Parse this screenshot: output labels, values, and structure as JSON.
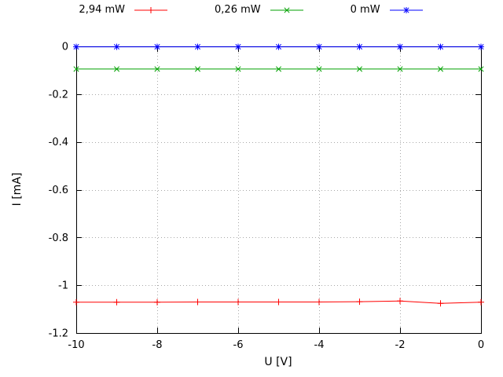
{
  "chart_data": {
    "type": "line",
    "title": "",
    "xlabel": "U [V]",
    "ylabel": "I [mA]",
    "xlim": [
      -10,
      0
    ],
    "ylim": [
      -1.2,
      0
    ],
    "xticks": [
      -10,
      -8,
      -6,
      -4,
      -2,
      0
    ],
    "xtick_labels": [
      "-10",
      "-8",
      "-6",
      "-4",
      "-2",
      "0"
    ],
    "yticks": [
      0,
      -0.2,
      -0.4,
      -0.6,
      -0.8,
      -1,
      -1.2
    ],
    "ytick_labels": [
      "0",
      "-0.2",
      "-0.4",
      "-0.6",
      "-0.8",
      "-1",
      "-1.2"
    ],
    "grid": true,
    "legend_position": "top",
    "x": [
      -10,
      -9,
      -8,
      -7,
      -6,
      -5,
      -4,
      -3,
      -2,
      -1,
      0
    ],
    "series": [
      {
        "name": "2,94 mW",
        "color": "#ff0000",
        "marker": "plus",
        "values": [
          -1.071,
          -1.071,
          -1.071,
          -1.07,
          -1.07,
          -1.07,
          -1.07,
          -1.069,
          -1.066,
          -1.076,
          -1.071
        ]
      },
      {
        "name": "0,26 mW",
        "color": "#00a000",
        "marker": "cross",
        "values": [
          -0.095,
          -0.095,
          -0.095,
          -0.095,
          -0.095,
          -0.095,
          -0.095,
          -0.095,
          -0.095,
          -0.095,
          -0.095
        ]
      },
      {
        "name": "0 mW",
        "color": "#0000ff",
        "marker": "star",
        "values": [
          -0.002,
          -0.002,
          -0.002,
          -0.002,
          -0.002,
          -0.002,
          -0.002,
          -0.002,
          -0.002,
          -0.002,
          -0.002
        ]
      }
    ],
    "colors": {
      "grid": "#a8a8a8",
      "border": "#000000",
      "text": "#000000"
    }
  }
}
